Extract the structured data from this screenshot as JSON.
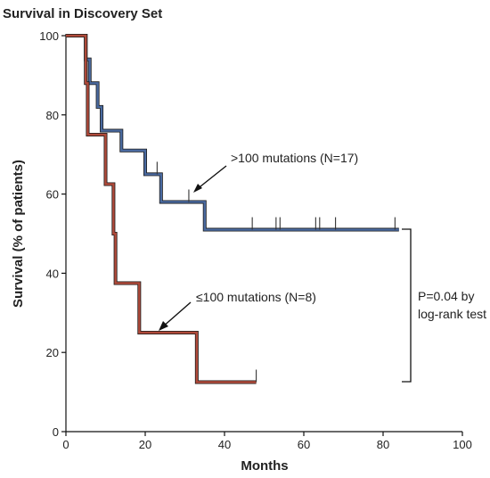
{
  "chart_data": {
    "type": "line",
    "title": "Survival in Discovery Set",
    "xlabel": "Months",
    "ylabel": "Survival (% of patients)",
    "xlim": [
      0,
      100
    ],
    "ylim": [
      0,
      100
    ],
    "xticks": [
      0,
      20,
      40,
      60,
      80,
      100
    ],
    "yticks": [
      0,
      20,
      40,
      60,
      80,
      100
    ],
    "grid": false,
    "series": [
      {
        "name": ">100 mutations (N=17)",
        "color": "#4a6aa0",
        "steps": [
          [
            0,
            100
          ],
          [
            5,
            94
          ],
          [
            6,
            88
          ],
          [
            8,
            82
          ],
          [
            9,
            76
          ],
          [
            14,
            71
          ],
          [
            20,
            65
          ],
          [
            24,
            58
          ],
          [
            35,
            51
          ],
          [
            84,
            51
          ]
        ],
        "censor": [
          23,
          31,
          47,
          53,
          54,
          63,
          64,
          68,
          83
        ]
      },
      {
        "name": "≤100 mutations (N=8)",
        "color": "#b04a3a",
        "steps": [
          [
            0,
            100
          ],
          [
            5,
            88
          ],
          [
            5.5,
            75
          ],
          [
            10,
            62.5
          ],
          [
            12,
            50
          ],
          [
            12.5,
            37.5
          ],
          [
            18.5,
            25
          ],
          [
            33,
            12.5
          ],
          [
            48,
            12.5
          ]
        ],
        "censor": [
          48
        ]
      }
    ],
    "annotations": {
      "high_label": ">100 mutations (N=17)",
      "low_label": "≤100 mutations (N=8)",
      "pvalue_line1": "P=0.04 by",
      "pvalue_line2": "log-rank test"
    }
  }
}
